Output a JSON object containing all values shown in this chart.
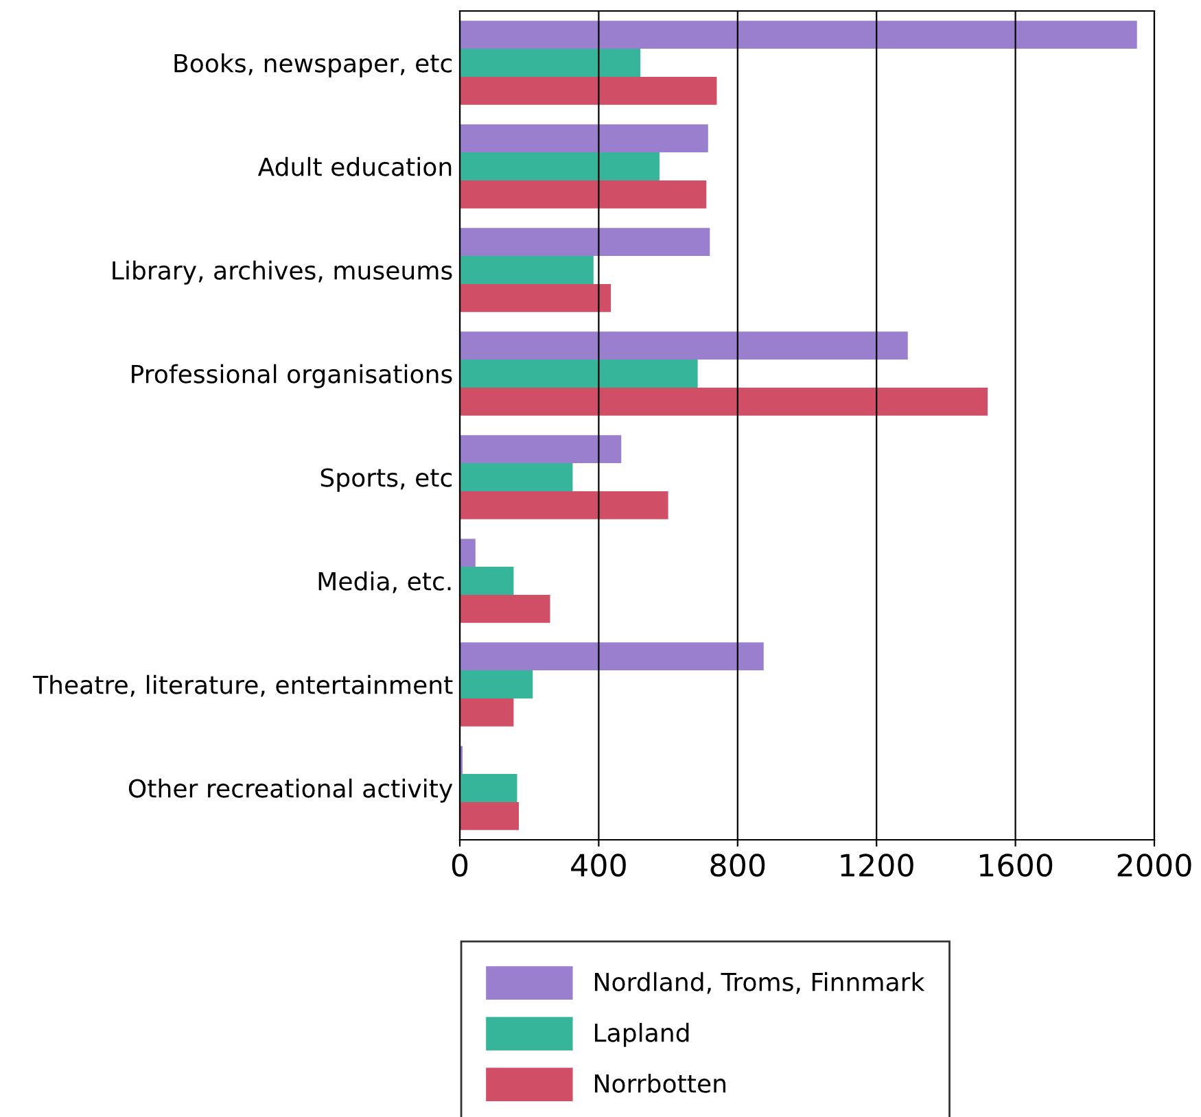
{
  "chart_data": {
    "type": "bar",
    "orientation": "horizontal",
    "categories": [
      "Books, newspaper, etc",
      "Adult education",
      "Library, archives, museums",
      "Professional organisations",
      "Sports, etc",
      "Media, etc.",
      "Theatre, literature, entertainment",
      "Other recreational activity"
    ],
    "series": [
      {
        "name": "Nordland, Troms, Finnmark",
        "color": "#9b7fcf",
        "values": [
          1950,
          715,
          720,
          1290,
          465,
          45,
          875,
          8
        ]
      },
      {
        "name": "Lapland",
        "color": "#36b59a",
        "values": [
          520,
          575,
          385,
          685,
          325,
          155,
          210,
          165
        ]
      },
      {
        "name": "Norrbotten",
        "color": "#d04f66",
        "values": [
          740,
          710,
          435,
          1520,
          600,
          260,
          155,
          170
        ]
      }
    ],
    "xlim": [
      0,
      2000
    ],
    "xticks": [
      0,
      400,
      800,
      1200,
      1600,
      2000
    ],
    "grid": "x",
    "legend": "bottom"
  }
}
